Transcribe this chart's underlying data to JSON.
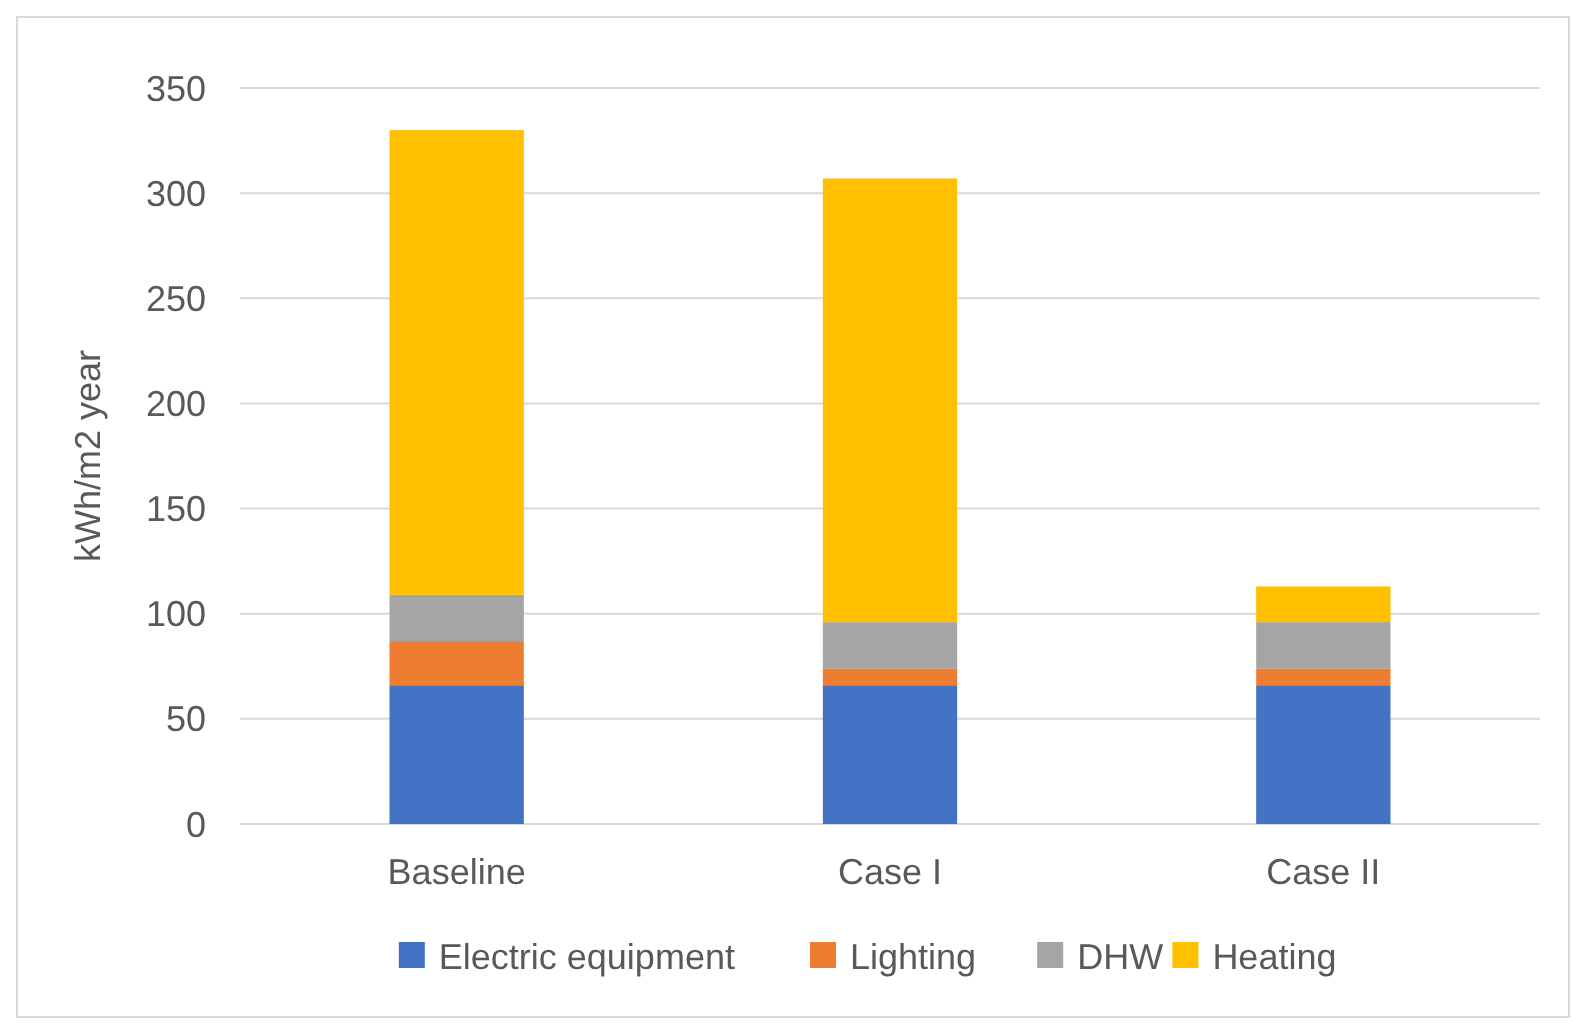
{
  "chart_data": {
    "type": "bar",
    "stacked": true,
    "ylabel": "kWh/m2 year",
    "categories": [
      "Baseline",
      "Case I",
      "Case II"
    ],
    "series": [
      {
        "name": "Electric equipment",
        "color": "#4472c4",
        "values": [
          66,
          66,
          66
        ]
      },
      {
        "name": "Lighting",
        "color": "#ed7d31",
        "values": [
          21,
          8,
          8
        ]
      },
      {
        "name": "DHW",
        "color": "#a5a5a5",
        "values": [
          22,
          22,
          22
        ]
      },
      {
        "name": "Heating",
        "color": "#ffc000",
        "values": [
          221,
          211,
          17
        ]
      }
    ],
    "ylim": [
      0,
      350
    ],
    "yticks": [
      0,
      50,
      100,
      150,
      200,
      250,
      300,
      350
    ],
    "grid": "y",
    "legend": "bottom"
  }
}
